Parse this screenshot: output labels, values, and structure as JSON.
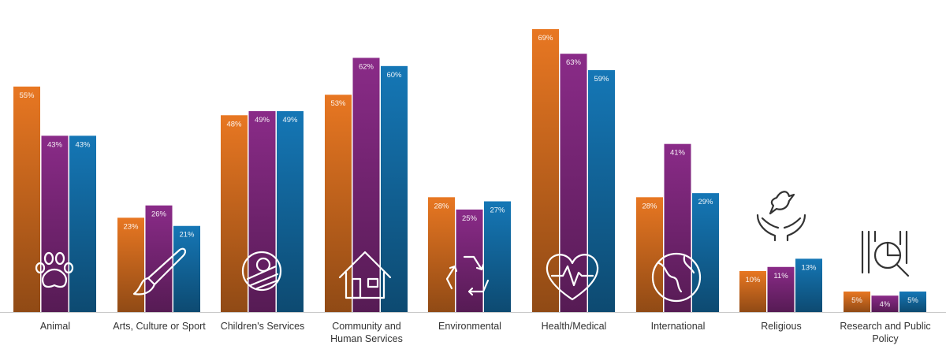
{
  "chart_data": {
    "type": "bar",
    "title": "",
    "xlabel": "",
    "ylabel": "",
    "ylim": [
      0,
      72
    ],
    "grid": false,
    "legend": "none",
    "categories": [
      {
        "label": "Animal",
        "icon": "paw-icon"
      },
      {
        "label": "Arts, Culture or Sport",
        "icon": "paintbrush-icon"
      },
      {
        "label": "Children's Services",
        "icon": "baby-icon"
      },
      {
        "label": "Community and Human Services",
        "icon": "house-icon"
      },
      {
        "label": "Environmental",
        "icon": "recycle-icon"
      },
      {
        "label": "Health/Medical",
        "icon": "heartbeat-icon"
      },
      {
        "label": "International",
        "icon": "globe-icon"
      },
      {
        "label": "Religious",
        "icon": "dove-hands-icon"
      },
      {
        "label": "Research and Public Policy",
        "icon": "research-magnifier-icon"
      }
    ],
    "series": [
      {
        "color": "#e87722",
        "values": [
          55,
          23,
          48,
          53,
          28,
          69,
          28,
          10,
          5
        ]
      },
      {
        "color": "#8a2b88",
        "values": [
          43,
          26,
          49,
          62,
          25,
          63,
          41,
          11,
          4
        ]
      },
      {
        "color": "#1577b6",
        "values": [
          43,
          21,
          49,
          60,
          27,
          59,
          29,
          13,
          5
        ]
      }
    ],
    "value_labels": [
      [
        "55%",
        "23%",
        "48%",
        "53%",
        "28%",
        "69%",
        "28%",
        "10%",
        "5%"
      ],
      [
        "43%",
        "26%",
        "49%",
        "62%",
        "25%",
        "63%",
        "41%",
        "11%",
        "4%"
      ],
      [
        "43%",
        "21%",
        "49%",
        "60%",
        "27%",
        "59%",
        "29%",
        "13%",
        "5%"
      ]
    ]
  }
}
